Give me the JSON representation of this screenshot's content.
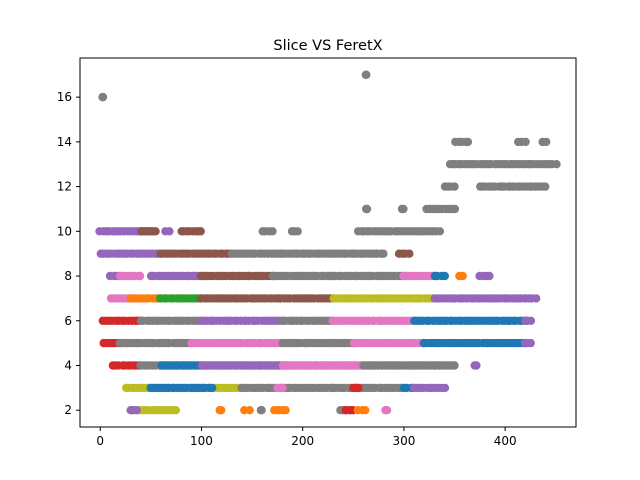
{
  "chart_data": {
    "type": "scatter",
    "title": "Slice VS FeretX",
    "xlabel": "",
    "ylabel": "",
    "xlim": [
      -20,
      470
    ],
    "ylim": [
      1.25,
      17.75
    ],
    "x_ticks": [
      0,
      100,
      200,
      300,
      400
    ],
    "y_ticks": [
      2,
      4,
      6,
      8,
      10,
      12,
      14,
      16
    ],
    "grid": false,
    "legend": "none",
    "colors": [
      "#1f77b4",
      "#ff7f0e",
      "#2ca02c",
      "#d62728",
      "#9467bd",
      "#8c564b",
      "#e377c2",
      "#7f7f7f",
      "#bcbd22",
      "#17becf"
    ],
    "bands": [
      {
        "y": 2,
        "segments": [
          [
            30,
            75,
            8
          ],
          [
            30,
            36,
            4
          ],
          [
            118,
            120,
            1
          ],
          [
            143,
            147,
            1
          ],
          [
            158,
            160,
            7
          ],
          [
            172,
            183,
            1
          ],
          [
            237,
            248,
            7
          ],
          [
            243,
            250,
            3
          ],
          [
            255,
            262,
            1
          ],
          [
            282,
            284,
            6
          ]
        ]
      },
      {
        "y": 3,
        "segments": [
          [
            25,
            140,
            8
          ],
          [
            50,
            110,
            0
          ],
          [
            140,
            230,
            7
          ],
          [
            230,
            300,
            7
          ],
          [
            250,
            255,
            3
          ],
          [
            300,
            310,
            0
          ],
          [
            310,
            340,
            4
          ],
          [
            175,
            180,
            6
          ]
        ]
      },
      {
        "y": 4,
        "segments": [
          [
            12,
            40,
            3
          ],
          [
            40,
            350,
            7
          ],
          [
            60,
            100,
            0
          ],
          [
            100,
            180,
            4
          ],
          [
            180,
            260,
            6
          ],
          [
            260,
            350,
            7
          ],
          [
            370,
            372,
            4
          ]
        ]
      },
      {
        "y": 5,
        "segments": [
          [
            3,
            20,
            3
          ],
          [
            20,
            90,
            7
          ],
          [
            90,
            180,
            6
          ],
          [
            180,
            250,
            7
          ],
          [
            250,
            320,
            6
          ],
          [
            320,
            420,
            0
          ],
          [
            420,
            425,
            4
          ]
        ]
      },
      {
        "y": 6,
        "segments": [
          [
            3,
            40,
            3
          ],
          [
            40,
            100,
            7
          ],
          [
            100,
            180,
            4
          ],
          [
            180,
            230,
            7
          ],
          [
            230,
            310,
            6
          ],
          [
            310,
            420,
            0
          ],
          [
            420,
            425,
            4
          ]
        ]
      },
      {
        "y": 7,
        "segments": [
          [
            10,
            30,
            6
          ],
          [
            30,
            60,
            1
          ],
          [
            60,
            100,
            2
          ],
          [
            100,
            230,
            5
          ],
          [
            230,
            330,
            8
          ],
          [
            330,
            420,
            4
          ],
          [
            420,
            430,
            4
          ]
        ]
      },
      {
        "y": 8,
        "segments": [
          [
            10,
            20,
            4
          ],
          [
            20,
            40,
            6
          ],
          [
            50,
            100,
            4
          ],
          [
            100,
            170,
            5
          ],
          [
            170,
            230,
            7
          ],
          [
            230,
            300,
            7
          ],
          [
            300,
            330,
            6
          ],
          [
            330,
            340,
            0
          ],
          [
            355,
            358,
            1
          ],
          [
            375,
            385,
            4
          ]
        ]
      },
      {
        "y": 9,
        "segments": [
          [
            0,
            60,
            4
          ],
          [
            60,
            130,
            5
          ],
          [
            130,
            250,
            7
          ],
          [
            250,
            280,
            7
          ],
          [
            295,
            305,
            5
          ]
        ]
      },
      {
        "y": 10,
        "segments": [
          [
            0,
            50,
            4
          ],
          [
            40,
            55,
            5
          ],
          [
            65,
            68,
            4
          ],
          [
            80,
            100,
            5
          ],
          [
            160,
            170,
            7
          ],
          [
            190,
            195,
            7
          ],
          [
            255,
            335,
            7
          ]
        ]
      },
      {
        "y": 11,
        "segments": [
          [
            262,
            264,
            7
          ],
          [
            298,
            300,
            7
          ],
          [
            323,
            350,
            7
          ]
        ]
      },
      {
        "y": 12,
        "segments": [
          [
            340,
            350,
            7
          ],
          [
            375,
            430,
            7
          ],
          [
            430,
            440,
            7
          ]
        ]
      },
      {
        "y": 13,
        "segments": [
          [
            345,
            450,
            7
          ]
        ]
      },
      {
        "y": 14,
        "segments": [
          [
            351,
            364,
            7
          ],
          [
            413,
            420,
            7
          ],
          [
            437,
            440,
            7
          ]
        ]
      },
      {
        "y": 16,
        "segments": [
          [
            3,
            3,
            7
          ]
        ]
      },
      {
        "y": 17,
        "segments": [
          [
            263,
            263,
            7
          ]
        ]
      }
    ]
  }
}
